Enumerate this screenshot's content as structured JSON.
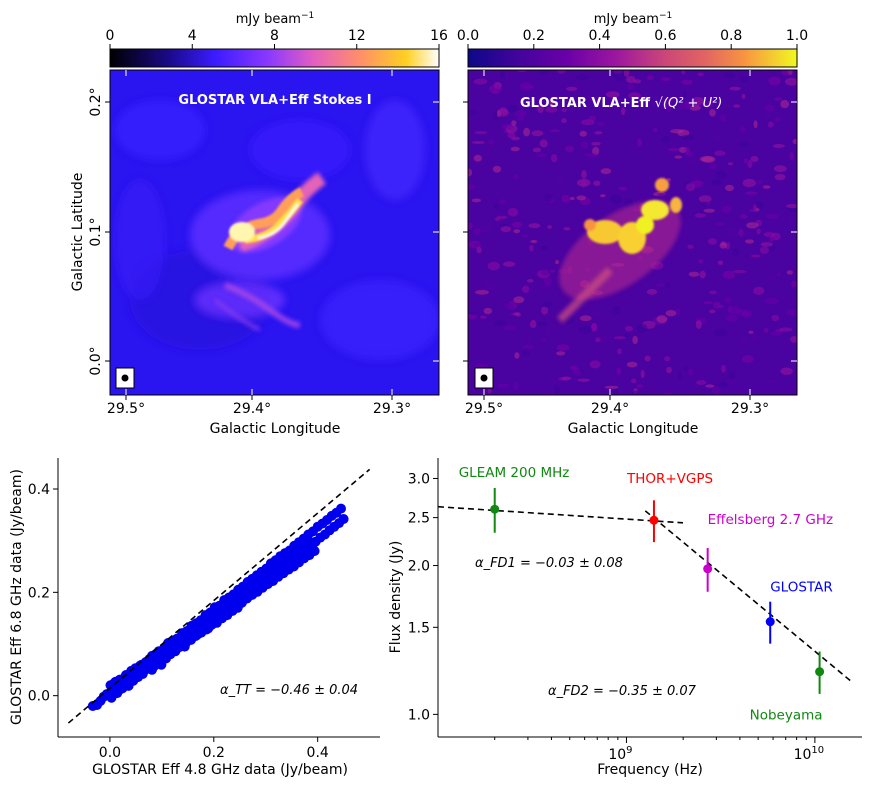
{
  "chart_data": [
    {
      "type": "heatmap",
      "title": "GLOSTAR VLA+Eff Stokes I",
      "xlabel": "Galactic Longitude",
      "ylabel": "Galactic Latitude",
      "x_ticks": [
        "29.5°",
        "29.4°",
        "29.3°"
      ],
      "y_ticks": [
        "0.0°",
        "0.1°",
        "0.2°"
      ],
      "colorbar": {
        "label": "mJy beam",
        "label_exponent": "−1",
        "ticks": [
          "0",
          "4",
          "8",
          "12",
          "16"
        ],
        "range": [
          0,
          16
        ],
        "colormap": "gnuplot2"
      }
    },
    {
      "type": "heatmap",
      "title_prefix": "GLOSTAR VLA+Eff",
      "title_math": "√(Q² + U²)",
      "xlabel": "Galactic Longitude",
      "x_ticks": [
        "29.5°",
        "29.4°",
        "29.3°"
      ],
      "colorbar": {
        "label": "mJy beam",
        "label_exponent": "−1",
        "ticks": [
          "0.0",
          "0.2",
          "0.4",
          "0.6",
          "0.8",
          "1.0"
        ],
        "range": [
          0,
          1
        ],
        "colormap": "plasma"
      }
    },
    {
      "type": "scatter",
      "xlabel": "GLOSTAR Eff 4.8 GHz data (Jy/beam)",
      "ylabel": "GLOSTAR Eff 6.8 GHz data (Jy/beam)",
      "xlim": [
        -0.1,
        0.52
      ],
      "ylim": [
        -0.08,
        0.46
      ],
      "x_ticks": [
        0.0,
        0.2,
        0.4
      ],
      "y_ticks": [
        0.0,
        0.2,
        0.4
      ],
      "x_tick_labels": [
        "0.0",
        "0.2",
        "0.4"
      ],
      "y_tick_labels": [
        "0.0",
        "0.2",
        "0.4"
      ],
      "fit_line": {
        "x": [
          -0.08,
          0.5
        ],
        "y": [
          -0.053,
          0.438
        ]
      },
      "annotation": "α_TT = −0.46 ± 0.04",
      "points_x": [
        -0.033,
        -0.025,
        -0.018,
        -0.012,
        -0.006,
        0.0,
        0.004,
        0.009,
        0.013,
        0.018,
        0.022,
        0.027,
        0.031,
        0.036,
        0.04,
        0.045,
        0.049,
        0.054,
        0.058,
        0.063,
        0.067,
        0.072,
        0.076,
        0.081,
        0.085,
        0.09,
        0.094,
        0.099,
        0.103,
        0.108,
        0.112,
        0.117,
        0.121,
        0.126,
        0.13,
        0.135,
        0.139,
        0.144,
        0.148,
        0.153,
        0.157,
        0.162,
        0.166,
        0.171,
        0.175,
        0.18,
        0.184,
        0.189,
        0.193,
        0.198,
        0.202,
        0.207,
        0.211,
        0.216,
        0.22,
        0.225,
        0.229,
        0.234,
        0.238,
        0.243,
        0.247,
        0.252,
        0.256,
        0.261,
        0.265,
        0.27,
        0.274,
        0.279,
        0.283,
        0.288,
        0.292,
        0.297,
        0.301,
        0.306,
        0.31,
        0.315,
        0.319,
        0.324,
        0.328,
        0.333,
        0.337,
        0.342,
        0.346,
        0.351,
        0.355,
        0.36,
        0.364,
        0.369,
        0.373,
        0.378,
        0.382,
        0.387,
        0.391,
        0.396,
        0.4,
        0.405,
        0.409,
        0.414,
        0.418,
        0.423,
        0.427,
        0.432,
        0.436,
        0.441,
        0.445,
        0.45,
        0.001,
        0.006,
        0.011,
        0.016,
        0.021,
        0.026,
        0.031,
        0.036,
        0.041,
        0.046,
        0.051,
        0.056,
        0.061,
        0.066,
        0.071,
        0.076,
        0.081,
        0.086,
        0.091,
        0.096,
        0.101,
        0.106,
        0.111,
        0.116,
        0.121,
        0.126,
        0.131,
        0.136,
        0.141,
        0.146,
        0.151,
        0.156,
        0.161,
        0.166,
        0.171,
        0.176,
        0.181,
        0.186,
        0.191,
        0.196,
        0.201,
        0.206,
        0.211,
        0.216,
        0.221,
        0.226,
        0.231,
        0.236,
        0.241,
        0.246,
        0.251,
        0.003,
        0.008,
        0.014,
        0.019,
        0.024,
        0.029,
        0.034,
        0.039,
        0.044,
        0.049,
        0.054,
        0.059,
        0.064,
        0.069,
        0.074,
        0.079,
        0.084,
        0.089,
        0.094,
        0.099,
        0.104,
        0.109,
        0.114,
        0.119,
        0.124,
        0.129,
        0.134,
        0.139,
        0.144,
        0.149,
        0.154,
        0.159,
        0.164,
        0.169,
        0.174,
        0.179,
        0.184,
        0.189,
        0.194,
        0.199,
        0.204,
        0.209,
        0.214,
        0.219,
        0.224,
        0.229,
        0.234,
        0.239,
        0.244,
        0.249,
        0.254,
        0.259,
        0.264,
        0.269,
        0.274,
        0.279,
        0.284,
        0.289,
        0.294,
        0.299,
        0.304,
        0.309,
        0.314,
        0.319,
        0.324,
        0.329,
        0.334,
        0.339,
        0.344,
        0.349,
        0.354,
        0.359,
        0.364,
        0.369,
        0.374,
        0.379,
        0.384,
        0.389,
        0.394
      ],
      "points_y": [
        -0.02,
        -0.018,
        -0.01,
        -0.002,
        0.003,
        0.004,
        0.017,
        0.008,
        0.021,
        0.011,
        0.031,
        0.021,
        0.04,
        0.019,
        0.043,
        0.029,
        0.052,
        0.036,
        0.058,
        0.042,
        0.06,
        0.054,
        0.071,
        0.05,
        0.076,
        0.064,
        0.086,
        0.06,
        0.089,
        0.072,
        0.102,
        0.081,
        0.104,
        0.086,
        0.11,
        0.097,
        0.121,
        0.095,
        0.125,
        0.11,
        0.135,
        0.115,
        0.14,
        0.12,
        0.146,
        0.132,
        0.156,
        0.13,
        0.161,
        0.144,
        0.171,
        0.15,
        0.174,
        0.157,
        0.185,
        0.166,
        0.19,
        0.172,
        0.196,
        0.18,
        0.205,
        0.186,
        0.211,
        0.19,
        0.22,
        0.2,
        0.226,
        0.206,
        0.233,
        0.214,
        0.24,
        0.222,
        0.246,
        0.226,
        0.256,
        0.235,
        0.262,
        0.24,
        0.27,
        0.247,
        0.276,
        0.256,
        0.281,
        0.262,
        0.29,
        0.27,
        0.297,
        0.275,
        0.304,
        0.284,
        0.312,
        0.29,
        0.318,
        0.298,
        0.327,
        0.306,
        0.333,
        0.312,
        0.34,
        0.32,
        0.348,
        0.327,
        0.354,
        0.334,
        0.362,
        0.342,
        0.02,
        0.009,
        0.027,
        0.016,
        0.03,
        0.022,
        0.039,
        0.027,
        0.048,
        0.034,
        0.05,
        0.042,
        0.06,
        0.048,
        0.066,
        0.053,
        0.077,
        0.058,
        0.082,
        0.068,
        0.087,
        0.076,
        0.095,
        0.08,
        0.106,
        0.088,
        0.109,
        0.096,
        0.118,
        0.102,
        0.126,
        0.108,
        0.13,
        0.116,
        0.14,
        0.122,
        0.146,
        0.128,
        0.154,
        0.137,
        0.161,
        0.141,
        0.168,
        0.15,
        0.174,
        0.156,
        0.18,
        0.164,
        0.189,
        0.17,
        0.195,
        -0.004,
        0.024,
        0.005,
        0.031,
        0.014,
        0.035,
        0.026,
        0.042,
        0.032,
        0.053,
        0.041,
        0.058,
        0.048,
        0.065,
        0.056,
        0.071,
        0.062,
        0.081,
        0.067,
        0.086,
        0.074,
        0.095,
        0.082,
        0.1,
        0.089,
        0.11,
        0.094,
        0.117,
        0.103,
        0.122,
        0.11,
        0.13,
        0.116,
        0.139,
        0.124,
        0.144,
        0.131,
        0.152,
        0.137,
        0.159,
        0.145,
        0.165,
        0.15,
        0.174,
        0.158,
        0.18,
        0.166,
        0.186,
        0.173,
        0.195,
        0.18,
        0.2,
        0.188,
        0.208,
        0.195,
        0.215,
        0.201,
        0.223,
        0.209,
        0.23,
        0.216,
        0.237,
        0.222,
        0.245,
        0.23,
        0.252,
        0.237,
        0.26,
        0.244,
        0.266,
        0.25,
        0.275,
        0.258,
        0.28,
        0.266,
        0.289,
        0.272,
        0.296,
        0.28
      ]
    },
    {
      "type": "scatter",
      "xscale": "log",
      "yscale": "log",
      "xlabel": "Frequency (Hz)",
      "ylabel": "Flux density (Jy)",
      "xlim_log10": [
        8.0,
        10.25
      ],
      "ylim": [
        0.9,
        3.3
      ],
      "y_ticks": [
        1.0,
        1.5,
        2.0,
        2.5,
        3.0
      ],
      "y_tick_labels": [
        "1.0",
        "1.5",
        "2.0",
        "2.5",
        "3.0"
      ],
      "x_major_ticks_log10": [
        9,
        10
      ],
      "x_tick_labels": [
        {
          "base": "10",
          "exp": "9"
        },
        {
          "base": "10",
          "exp": "10"
        }
      ],
      "points": [
        {
          "label": "GLEAM 200 MHz",
          "freq_log10": 8.301,
          "flux": 2.6,
          "err": 0.27,
          "color": "#118811"
        },
        {
          "label": "THOR+VGPS",
          "freq_log10": 9.146,
          "flux": 2.47,
          "err": 0.24,
          "color": "#ff0000"
        },
        {
          "label": "Effelsberg 2.7 GHz",
          "freq_log10": 9.431,
          "flux": 1.97,
          "err": 0.2,
          "color": "#cc00cc"
        },
        {
          "label": "GLOSTAR",
          "freq_log10": 9.763,
          "flux": 1.54,
          "err": 0.15,
          "color": "#0000ff"
        },
        {
          "label": "Nobeyama",
          "freq_log10": 10.025,
          "flux": 1.22,
          "err": 0.12,
          "color": "#118811"
        }
      ],
      "fit_lines": [
        {
          "name": "FD1",
          "freq_log10": [
            8.0,
            9.3
          ],
          "flux": [
            2.63,
            2.44
          ]
        },
        {
          "name": "FD2",
          "freq_log10": [
            9.1,
            10.2
          ],
          "flux": [
            2.58,
            1.16
          ]
        }
      ],
      "annotations": [
        "α_FD1 = −0.03 ± 0.08",
        "α_FD2 = −0.35 ± 0.07"
      ]
    }
  ]
}
